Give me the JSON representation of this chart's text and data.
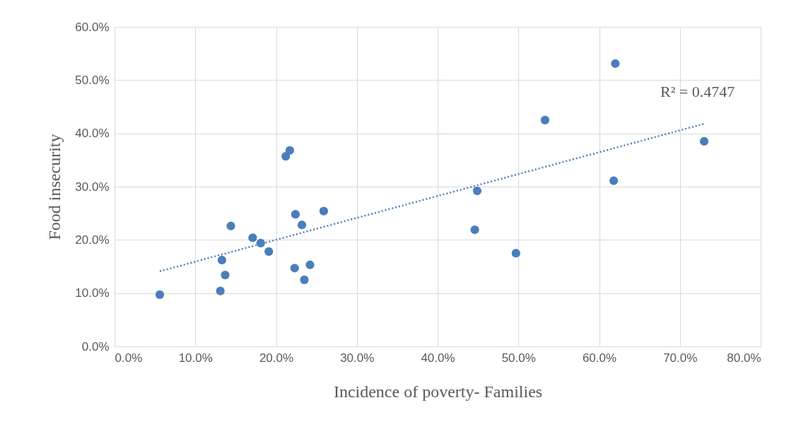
{
  "chart_data": {
    "type": "scatter",
    "xlabel": "Incidence of poverty- Families",
    "ylabel": "Food insecurity",
    "xlim": [
      0,
      80
    ],
    "ylim": [
      0,
      60
    ],
    "xticks": [
      {
        "value": 0,
        "label": "0.0%"
      },
      {
        "value": 10,
        "label": "10.0%"
      },
      {
        "value": 20,
        "label": "20.0%"
      },
      {
        "value": 30,
        "label": "30.0%"
      },
      {
        "value": 40,
        "label": "40.0%"
      },
      {
        "value": 50,
        "label": "50.0%"
      },
      {
        "value": 60,
        "label": "60.0%"
      },
      {
        "value": 70,
        "label": "70.0%"
      },
      {
        "value": 80,
        "label": "80.0%"
      }
    ],
    "yticks": [
      {
        "value": 0,
        "label": "0.0%"
      },
      {
        "value": 10,
        "label": "10.0%"
      },
      {
        "value": 20,
        "label": "20.0%"
      },
      {
        "value": 30,
        "label": "30.0%"
      },
      {
        "value": 40,
        "label": "40.0%"
      },
      {
        "value": 50,
        "label": "50.0%"
      },
      {
        "value": 60,
        "label": "60.0%"
      }
    ],
    "grid": true,
    "annotations": [
      "R² = 0.4747"
    ],
    "series": [
      {
        "color": "#4a7ebb",
        "marker": "circle",
        "x": [
          5.6,
          13.1,
          13.3,
          13.7,
          14.4,
          17.1,
          18.1,
          19.1,
          21.2,
          21.7,
          22.3,
          22.4,
          23.2,
          23.5,
          24.2,
          25.9,
          44.6,
          44.9,
          49.7,
          53.3,
          61.8,
          62.0,
          73.0
        ],
        "values": [
          9.7,
          10.4,
          16.2,
          13.4,
          22.6,
          20.4,
          19.4,
          17.8,
          35.7,
          36.8,
          14.7,
          24.8,
          22.8,
          12.5,
          15.3,
          25.4,
          21.9,
          29.2,
          17.5,
          42.5,
          31.1,
          53.1,
          38.5
        ]
      },
      {
        "type": "line",
        "color": "#4a7ebb",
        "marker": "none",
        "line_style": "dotted",
        "x": [
          5.6,
          73.0
        ],
        "values": [
          14.1,
          41.8
        ]
      }
    ]
  }
}
